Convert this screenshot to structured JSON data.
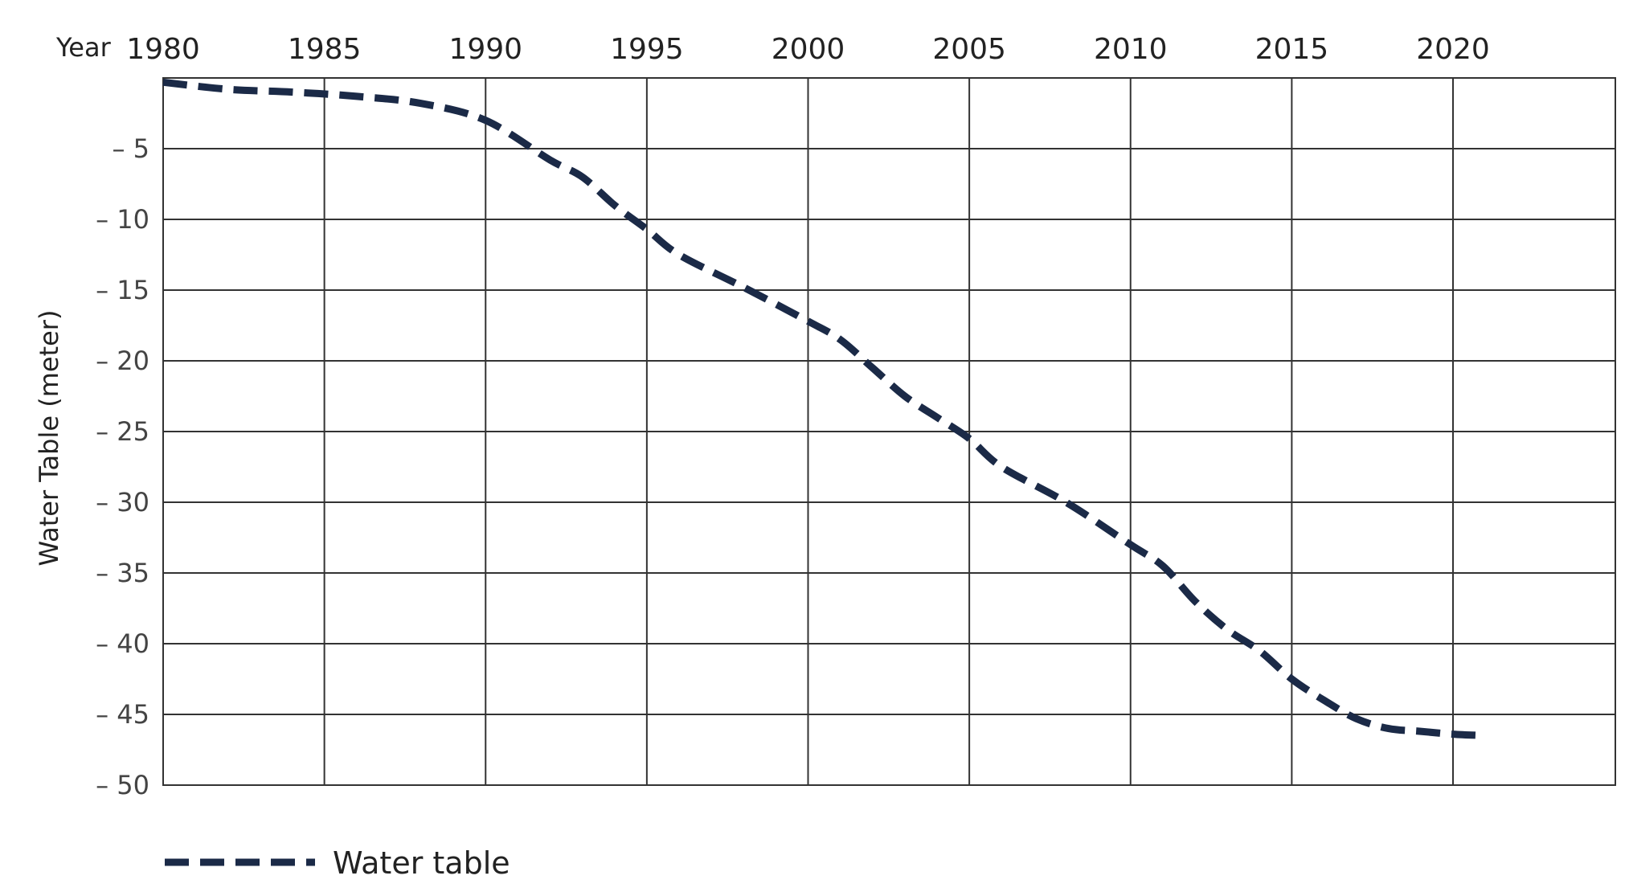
{
  "chart_data": {
    "type": "line",
    "title": "",
    "xlabel": "Year",
    "ylabel": "Water Table (meter)",
    "x_ticks": [
      1980,
      1985,
      1990,
      1995,
      2000,
      2005,
      2010,
      2015,
      2020
    ],
    "x_tick_labels": [
      "1980",
      "1985",
      "1990",
      "1995",
      "2000",
      "2005",
      "2010",
      "2015",
      "2020"
    ],
    "y_ticks": [
      -5,
      -10,
      -15,
      -20,
      -25,
      -30,
      -35,
      -40,
      -45,
      -50
    ],
    "y_tick_labels": [
      "– 5",
      "– 10",
      "– 15",
      "– 20",
      "– 25",
      "– 30",
      "– 35",
      "– 40",
      "– 45",
      "– 50"
    ],
    "xlim": [
      1980,
      2025
    ],
    "ylim": [
      -50,
      0
    ],
    "grid": true,
    "x_axis_position": "top",
    "legend": "bottom-left",
    "series": [
      {
        "name": "Water table",
        "style": "dashed",
        "color": "#1b2a47",
        "x": [
          1980,
          1982,
          1984,
          1986,
          1988,
          1990,
          1992,
          1993,
          1994,
          1995,
          1996,
          1998,
          2000,
          2001,
          2002,
          2003,
          2004,
          2005,
          2006,
          2008,
          2010,
          2011,
          2012,
          2013,
          2014,
          2015,
          2016,
          2017,
          2018,
          2019,
          2020,
          2021
        ],
        "y": [
          -0.3,
          -0.8,
          -1.0,
          -1.3,
          -1.8,
          -3.0,
          -5.8,
          -7.0,
          -9.0,
          -10.7,
          -12.5,
          -14.8,
          -17.2,
          -18.5,
          -20.5,
          -22.5,
          -24.0,
          -25.5,
          -27.5,
          -30.0,
          -33.0,
          -34.5,
          -37.0,
          -39.0,
          -40.5,
          -42.5,
          -44.0,
          -45.3,
          -46.0,
          -46.2,
          -46.4,
          -46.5
        ]
      }
    ]
  }
}
